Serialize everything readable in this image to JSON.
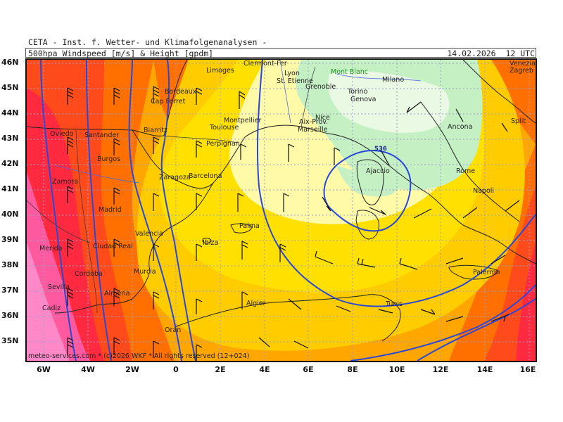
{
  "header": {
    "line1": "CETA - Inst. f. Wetter- und Klimafolgenanalysen -",
    "parameter": "500hpa Windspeed [m/s] & Height [gpdm]",
    "datetime": "14.02.2026  12 UTC"
  },
  "axes": {
    "lat_labels": [
      "46N",
      "45N",
      "44N",
      "43N",
      "42N",
      "41N",
      "40N",
      "39N",
      "38N",
      "37N",
      "36N",
      "35N"
    ],
    "lon_labels": [
      "6W",
      "4W",
      "2W",
      "0",
      "2E",
      "4E",
      "6E",
      "8E",
      "10E",
      "12E",
      "14E",
      "16E"
    ]
  },
  "cities": [
    {
      "name": "Clermont-Fer"
    },
    {
      "name": "Limoges"
    },
    {
      "name": "Lyon"
    },
    {
      "name": "St. Etienne"
    },
    {
      "name": "Mont Blanc",
      "color": "green"
    },
    {
      "name": "Milano"
    },
    {
      "name": "Grenoble"
    },
    {
      "name": "Torino"
    },
    {
      "name": "Genova"
    },
    {
      "name": "Bordeaux"
    },
    {
      "name": "Cap Ferret"
    },
    {
      "name": "Montpellier"
    },
    {
      "name": "Toulouse"
    },
    {
      "name": "Nice"
    },
    {
      "name": "Aix-Prov."
    },
    {
      "name": "Marseille"
    },
    {
      "name": "Oviedo"
    },
    {
      "name": "Santander"
    },
    {
      "name": "Biarritz"
    },
    {
      "name": "Perpignan"
    },
    {
      "name": "Burgos"
    },
    {
      "name": "Zaragoza"
    },
    {
      "name": "Barcelona"
    },
    {
      "name": "Ajaccio"
    },
    {
      "name": "Zamora"
    },
    {
      "name": "Madrid"
    },
    {
      "name": "Valencia"
    },
    {
      "name": "Ibiza"
    },
    {
      "name": "Palma"
    },
    {
      "name": "Merida"
    },
    {
      "name": "Ciudad Real"
    },
    {
      "name": "Cordoba"
    },
    {
      "name": "Murcia"
    },
    {
      "name": "Sevilla"
    },
    {
      "name": "Almeria"
    },
    {
      "name": "Cadiz"
    },
    {
      "name": "Algier"
    },
    {
      "name": "Tunis"
    },
    {
      "name": "Oran"
    },
    {
      "name": "Rome"
    },
    {
      "name": "Napoli"
    },
    {
      "name": "Palermo"
    },
    {
      "name": "Ancona"
    },
    {
      "name": "Split"
    },
    {
      "name": "Zagreb"
    },
    {
      "name": "Venezia"
    }
  ],
  "contour_label": "536",
  "credit": "meteo-services.com * (c)2026 WKF * All rights reserved (12+024)",
  "colors": {
    "very_light_green": "#e9f9e3",
    "light_green": "#c4f0c4",
    "pale_yellow": "#fffaa8",
    "yellow": "#ffe000",
    "gold": "#ffcc00",
    "orange": "#ffa600",
    "dark_orange": "#ff7000",
    "red_orange": "#ff4a1c",
    "red": "#ff2a40",
    "pink": "#ff5aa0",
    "light_pink": "#ff88c8",
    "contour": "#2a48d8",
    "grid": "#9aa0c8",
    "coast": "#222222",
    "rivers": "#4a6ad8"
  }
}
